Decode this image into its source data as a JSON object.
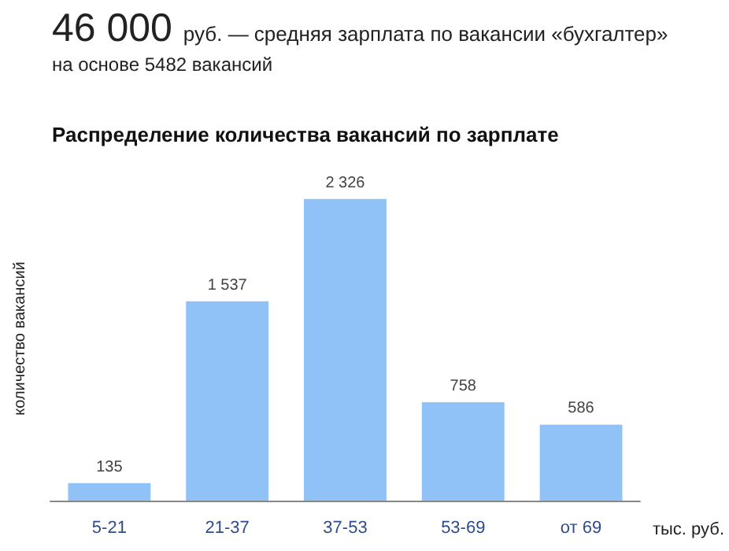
{
  "chart_data": {
    "type": "bar",
    "title": "Распределение количества вакансий по зарплате",
    "annotations": [
      "46 000 руб. — средняя зарплата по вакансии «бухгалтер»",
      "на основе 5482 вакансий"
    ],
    "ylabel": "количество вакансий",
    "xlabel": "тыс. руб.",
    "categories": [
      "5-21",
      "21-37",
      "37-53",
      "53-69",
      "от 69"
    ],
    "values": [
      135,
      1537,
      2326,
      758,
      586
    ],
    "value_labels": [
      "135",
      "1 537",
      "2 326",
      "758",
      "586"
    ],
    "color": "#90c2f7"
  }
}
